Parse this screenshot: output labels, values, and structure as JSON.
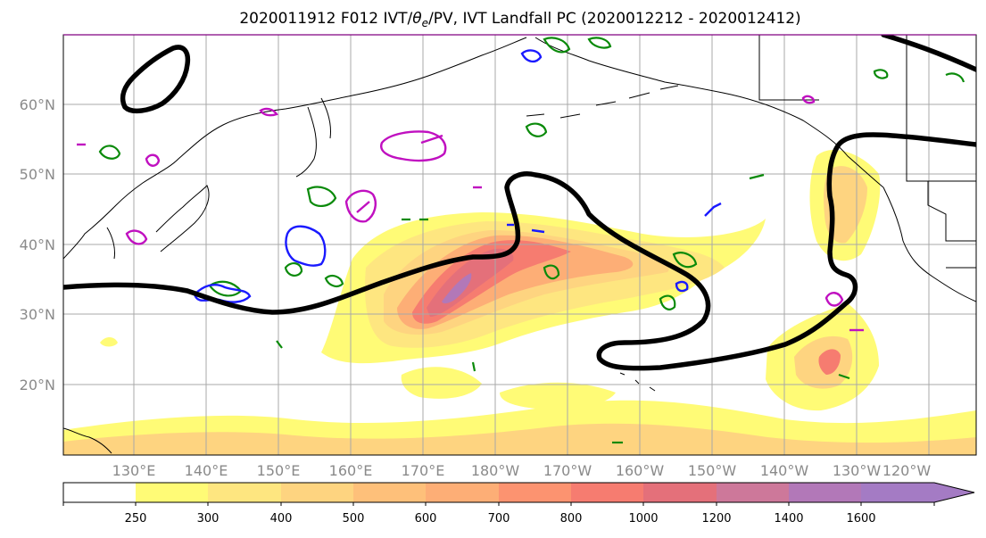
{
  "title_main": "2020011912 F012 IVT/",
  "title_theta": "θ",
  "title_sub": "e",
  "title_rest": "/PV, IVT Landfall PC (2020012212 - 2020012412)",
  "lat_labels": [
    "60°N",
    "50°N",
    "40°N",
    "30°N",
    "20°N"
  ],
  "lon_labels": [
    "130°E",
    "140°E",
    "150°E",
    "160°E",
    "170°E",
    "180°W",
    "170°W",
    "160°W",
    "150°W",
    "140°W",
    "130°W",
    "120°W"
  ],
  "colorbar": {
    "labels": [
      "250",
      "300",
      "400",
      "500",
      "600",
      "700",
      "800",
      "1000",
      "1200",
      "1400",
      "1600"
    ],
    "colors": [
      "#ffffff",
      "#fffb76",
      "#fee680",
      "#fed480",
      "#fec07a",
      "#fdae76",
      "#fc9370",
      "#f67c70",
      "#e4707a",
      "#cd789a",
      "#b278b8",
      "#a47bc4"
    ]
  },
  "overlay_colors": {
    "jet": "#000000",
    "pv_green": "#0a8a0a",
    "pv_blue": "#1a1aff",
    "theta_magenta": "#c010c0",
    "coast": "#000000"
  }
}
